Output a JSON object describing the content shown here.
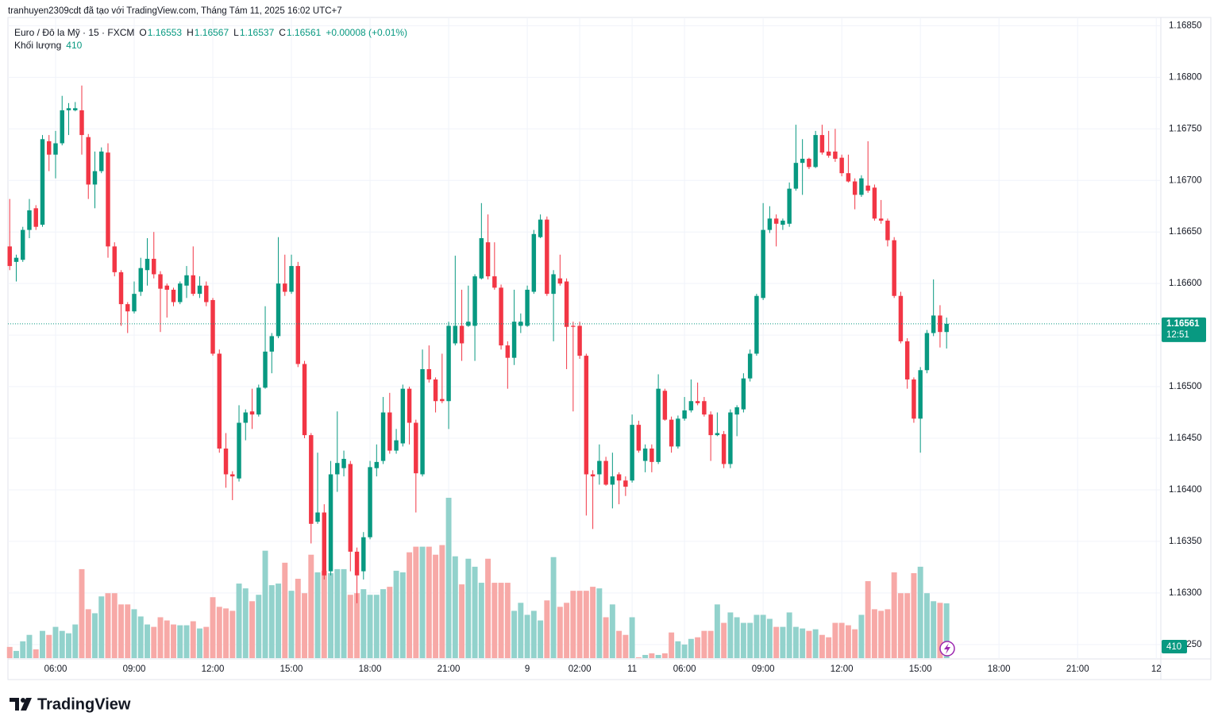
{
  "header": {
    "attribution": "tranhuyen2309cdt đã tạo với TradingView.com, Tháng Tám 11, 2025 16:02 UTC+7"
  },
  "chart_data": {
    "type": "candlestick",
    "symbol": "Euro / Đô la Mỹ · 15 · FXCM",
    "ohlc_labels": [
      "O",
      "H",
      "L",
      "C"
    ],
    "change_label": "+0.00008 (+0.01%)",
    "volume_label": "Khối lượng",
    "countdown": "12:51",
    "up_color": "#089981",
    "down_color": "#f23645",
    "up_volume_color": "#92d2cc",
    "down_volume_color": "#f7a9a7",
    "grid": true,
    "last_price_line": true,
    "open": [
      1.16636,
      1.16621,
      1.16623,
      1.16652,
      1.16673,
      1.16657,
      1.16738,
      1.16725,
      1.16736,
      1.16768,
      1.16768,
      1.16768,
      1.16742,
      1.16696,
      1.16709,
      1.16727,
      1.16636,
      1.16611,
      1.1658,
      1.16573,
      1.16592,
      1.16613,
      1.16624,
      1.16609,
      1.16598,
      1.16594,
      1.16582,
      1.16598,
      1.16608,
      1.1659,
      1.16598,
      1.16584,
      1.16532,
      1.1644,
      1.16415,
      1.16411,
      1.16465,
      1.16476,
      1.16473,
      1.16499,
      1.16534,
      1.16549,
      1.166,
      1.16592,
      1.16617,
      1.16522,
      1.16453,
      1.16369,
      1.16378,
      1.16321,
      1.16415,
      1.16421,
      1.16425,
      1.1634,
      1.16321,
      1.16354,
      1.16421,
      1.16428,
      1.16475,
      1.16438,
      1.16445,
      1.16498,
      1.16465,
      1.16415,
      1.16517,
      1.16507,
      1.16488,
      1.16486,
      1.16542,
      1.16559,
      1.16559,
      1.16559,
      1.16605,
      1.1664,
      1.16607,
      1.16596,
      1.1654,
      1.16528,
      1.16559,
      1.16559,
      1.16592,
      1.16645,
      1.16662,
      1.1659,
      1.16605,
      1.16602,
      1.16559,
      1.16559,
      1.1653,
      1.16415,
      1.16415,
      1.16428,
      1.16405,
      1.16415,
      1.16409,
      1.16409,
      1.16463,
      1.16428,
      1.1644,
      1.16427,
      1.16496,
      1.16468,
      1.16442,
      1.16469,
      1.16477,
      1.16486,
      1.16486,
      1.16473,
      1.16453,
      1.16454,
      1.16425,
      1.16473,
      1.16478,
      1.16508,
      1.16532,
      1.16586,
      1.16652,
      1.16663,
      1.16657,
      1.16658,
      1.16692,
      1.16717,
      1.16721,
      1.16713,
      1.16744,
      1.16728,
      1.16728,
      1.16722,
      1.16707,
      1.16699,
      1.16686,
      1.16695,
      1.16693,
      1.16663,
      1.16661,
      1.16642,
      1.16588,
      1.16544,
      1.16507,
      1.16469,
      1.16516,
      1.16552,
      1.16569,
      1.16553
    ],
    "high": [
      1.16682,
      1.16628,
      1.16655,
      1.16682,
      1.16676,
      1.16744,
      1.16744,
      1.16748,
      1.16782,
      1.16775,
      1.16776,
      1.16792,
      1.16745,
      1.16728,
      1.16732,
      1.16736,
      1.1664,
      1.16613,
      1.16582,
      1.16602,
      1.16625,
      1.16644,
      1.1665,
      1.16612,
      1.166,
      1.16596,
      1.16602,
      1.16617,
      1.16636,
      1.16607,
      1.16602,
      1.16586,
      1.16536,
      1.16455,
      1.16418,
      1.16482,
      1.16478,
      1.16498,
      1.16502,
      1.16578,
      1.16552,
      1.16645,
      1.16628,
      1.16628,
      1.16621,
      1.16525,
      1.16455,
      1.16436,
      1.16386,
      1.16428,
      1.16476,
      1.16438,
      1.16428,
      1.16344,
      1.16359,
      1.16428,
      1.16444,
      1.1649,
      1.16494,
      1.16459,
      1.16502,
      1.165,
      1.16468,
      1.16536,
      1.1654,
      1.16509,
      1.16532,
      1.16563,
      1.16627,
      1.16594,
      1.16598,
      1.16609,
      1.16678,
      1.16667,
      1.1664,
      1.16599,
      1.16544,
      1.16594,
      1.16571,
      1.16598,
      1.16652,
      1.16667,
      1.16665,
      1.16613,
      1.16628,
      1.16605,
      1.16563,
      1.16563,
      1.16532,
      1.16419,
      1.16444,
      1.16432,
      1.16436,
      1.16417,
      1.16413,
      1.16473,
      1.16467,
      1.16444,
      1.16444,
      1.16512,
      1.16498,
      1.16471,
      1.16472,
      1.1649,
      1.16507,
      1.16504,
      1.1649,
      1.16476,
      1.16475,
      1.16457,
      1.16478,
      1.16482,
      1.16513,
      1.16536,
      1.1659,
      1.16678,
      1.16675,
      1.16667,
      1.16663,
      1.16698,
      1.16754,
      1.1674,
      1.16722,
      1.16748,
      1.16754,
      1.16748,
      1.1675,
      1.16725,
      1.16725,
      1.16702,
      1.16705,
      1.16738,
      1.16696,
      1.16681,
      1.16663,
      1.16645,
      1.16592,
      1.16547,
      1.16509,
      1.16519,
      1.16555,
      1.16604,
      1.16579,
      1.16567
    ],
    "low": [
      1.16613,
      1.16602,
      1.16621,
      1.16644,
      1.16652,
      1.16655,
      1.16709,
      1.16702,
      1.16734,
      1.16744,
      1.16767,
      1.16725,
      1.16682,
      1.16673,
      1.16707,
      1.16625,
      1.16607,
      1.16559,
      1.16552,
      1.16571,
      1.16588,
      1.16598,
      1.16605,
      1.16553,
      1.16567,
      1.16578,
      1.1658,
      1.16586,
      1.16588,
      1.16586,
      1.16578,
      1.1653,
      1.16436,
      1.16402,
      1.1639,
      1.16408,
      1.16448,
      1.16459,
      1.16471,
      1.16498,
      1.16513,
      1.16547,
      1.16588,
      1.1659,
      1.16519,
      1.1645,
      1.16348,
      1.16367,
      1.16313,
      1.16317,
      1.16398,
      1.16413,
      1.16321,
      1.1629,
      1.16313,
      1.16352,
      1.16413,
      1.16425,
      1.16435,
      1.16435,
      1.16442,
      1.16444,
      1.16378,
      1.16413,
      1.16504,
      1.16475,
      1.16484,
      1.16459,
      1.1654,
      1.16525,
      1.16558,
      1.16525,
      1.16604,
      1.16604,
      1.16594,
      1.16536,
      1.16498,
      1.16521,
      1.16552,
      1.16558,
      1.1659,
      1.16644,
      1.16588,
      1.16544,
      1.16598,
      1.16517,
      1.16476,
      1.16527,
      1.16375,
      1.16362,
      1.16405,
      1.16404,
      1.16382,
      1.16386,
      1.16394,
      1.16407,
      1.16436,
      1.16417,
      1.16417,
      1.16425,
      1.16467,
      1.16436,
      1.1644,
      1.16467,
      1.16475,
      1.16482,
      1.16471,
      1.16428,
      1.16452,
      1.16421,
      1.16421,
      1.16452,
      1.16475,
      1.16505,
      1.1653,
      1.16584,
      1.16649,
      1.16636,
      1.16652,
      1.16655,
      1.1669,
      1.16686,
      1.16711,
      1.16712,
      1.16725,
      1.16722,
      1.16718,
      1.16704,
      1.16698,
      1.16672,
      1.16684,
      1.16688,
      1.16661,
      1.16658,
      1.16636,
      1.16586,
      1.16542,
      1.16498,
      1.16465,
      1.16436,
      1.16513,
      1.16549,
      1.16538,
      1.16537
    ],
    "close": [
      1.16617,
      1.16625,
      1.16652,
      1.16671,
      1.16655,
      1.1674,
      1.16725,
      1.16736,
      1.16768,
      1.1677,
      1.1677,
      1.16744,
      1.16696,
      1.16709,
      1.16728,
      1.16636,
      1.16611,
      1.1658,
      1.16573,
      1.1659,
      1.16615,
      1.16624,
      1.16609,
      1.16595,
      1.16594,
      1.16582,
      1.166,
      1.16608,
      1.1659,
      1.16598,
      1.16582,
      1.16532,
      1.1644,
      1.16415,
      1.16413,
      1.16465,
      1.16475,
      1.16473,
      1.16499,
      1.16534,
      1.16549,
      1.166,
      1.16592,
      1.16617,
      1.16522,
      1.16453,
      1.16367,
      1.16378,
      1.16317,
      1.16415,
      1.16426,
      1.1643,
      1.1634,
      1.16317,
      1.16354,
      1.16422,
      1.16427,
      1.16475,
      1.16438,
      1.16448,
      1.16498,
      1.16465,
      1.16416,
      1.16517,
      1.16507,
      1.16486,
      1.16486,
      1.16559,
      1.16559,
      1.16542,
      1.16563,
      1.16607,
      1.16644,
      1.16607,
      1.16596,
      1.1654,
      1.16528,
      1.16563,
      1.16563,
      1.16594,
      1.16648,
      1.16662,
      1.1659,
      1.16609,
      1.166,
      1.16558,
      1.16558,
      1.1653,
      1.16415,
      1.16413,
      1.16428,
      1.16405,
      1.16413,
      1.16409,
      1.16403,
      1.16463,
      1.16438,
      1.1644,
      1.16427,
      1.16498,
      1.16468,
      1.16442,
      1.16469,
      1.16477,
      1.16486,
      1.16484,
      1.16473,
      1.16453,
      1.16455,
      1.16425,
      1.16475,
      1.1648,
      1.16508,
      1.16532,
      1.16588,
      1.16652,
      1.16663,
      1.16658,
      1.16661,
      1.16692,
      1.16717,
      1.16721,
      1.16713,
      1.16744,
      1.16727,
      1.16724,
      1.16721,
      1.16707,
      1.16699,
      1.16686,
      1.16702,
      1.1669,
      1.16663,
      1.16661,
      1.16642,
      1.16588,
      1.16544,
      1.16507,
      1.16469,
      1.16516,
      1.16552,
      1.16569,
      1.16553,
      1.16561
    ],
    "volume": [
      84,
      54,
      126,
      174,
      66,
      204,
      174,
      234,
      204,
      186,
      252,
      666,
      366,
      336,
      462,
      486,
      486,
      402,
      402,
      366,
      312,
      252,
      234,
      306,
      282,
      252,
      246,
      246,
      276,
      222,
      234,
      456,
      384,
      372,
      354,
      558,
      522,
      426,
      474,
      804,
      546,
      558,
      714,
      504,
      594,
      486,
      774,
      642,
      654,
      636,
      666,
      666,
      474,
      486,
      516,
      474,
      474,
      516,
      534,
      654,
      642,
      792,
      834,
      834,
      834,
      774,
      846,
      1200,
      762,
      552,
      744,
      684,
      564,
      744,
      564,
      564,
      564,
      354,
      414,
      324,
      354,
      282,
      432,
      756,
      384,
      414,
      504,
      504,
      504,
      534,
      522,
      306,
      402,
      204,
      174,
      306,
      6,
      24,
      36,
      24,
      36,
      192,
      126,
      102,
      144,
      156,
      204,
      204,
      402,
      264,
      342,
      306,
      264,
      264,
      324,
      324,
      294,
      234,
      234,
      342,
      234,
      222,
      204,
      216,
      174,
      156,
      264,
      264,
      246,
      216,
      324,
      576,
      366,
      354,
      366,
      642,
      486,
      486,
      636,
      684,
      486,
      426,
      414,
      410
    ],
    "ylim": [
      1.16236,
      1.16858
    ],
    "yticks": [
      {
        "value": 1.1685,
        "label": "1.16850"
      },
      {
        "value": 1.168,
        "label": "1.16800"
      },
      {
        "value": 1.1675,
        "label": "1.16750"
      },
      {
        "value": 1.167,
        "label": "1.16700"
      },
      {
        "value": 1.1665,
        "label": "1.16650"
      },
      {
        "value": 1.166,
        "label": "1.16600"
      },
      {
        "value": 1.1655,
        "label": "1.16550"
      },
      {
        "value": 1.165,
        "label": "1.16500"
      },
      {
        "value": 1.1645,
        "label": "1.16450"
      },
      {
        "value": 1.164,
        "label": "1.16400"
      },
      {
        "value": 1.1635,
        "label": "1.16350"
      },
      {
        "value": 1.163,
        "label": "1.16300"
      },
      {
        "value": 1.1625,
        "label": "1.16250"
      }
    ],
    "xlim": [
      -0.27,
      175.7
    ],
    "xticks": [
      {
        "value": 7,
        "label": "06:00"
      },
      {
        "value": 19,
        "label": "09:00"
      },
      {
        "value": 31,
        "label": "12:00"
      },
      {
        "value": 43,
        "label": "15:00"
      },
      {
        "value": 55,
        "label": "18:00"
      },
      {
        "value": 67,
        "label": "21:00"
      },
      {
        "value": 79,
        "label": "9"
      },
      {
        "value": 87,
        "label": "02:00"
      },
      {
        "value": 95,
        "label": "11"
      },
      {
        "value": 103,
        "label": "06:00"
      },
      {
        "value": 115,
        "label": "09:00"
      },
      {
        "value": 127,
        "label": "12:00"
      },
      {
        "value": 139,
        "label": "15:00"
      },
      {
        "value": 151,
        "label": "18:00"
      },
      {
        "value": 163,
        "label": "21:00"
      },
      {
        "value": 175,
        "label": "12"
      }
    ]
  },
  "footer": {
    "logo": "TradingView"
  }
}
